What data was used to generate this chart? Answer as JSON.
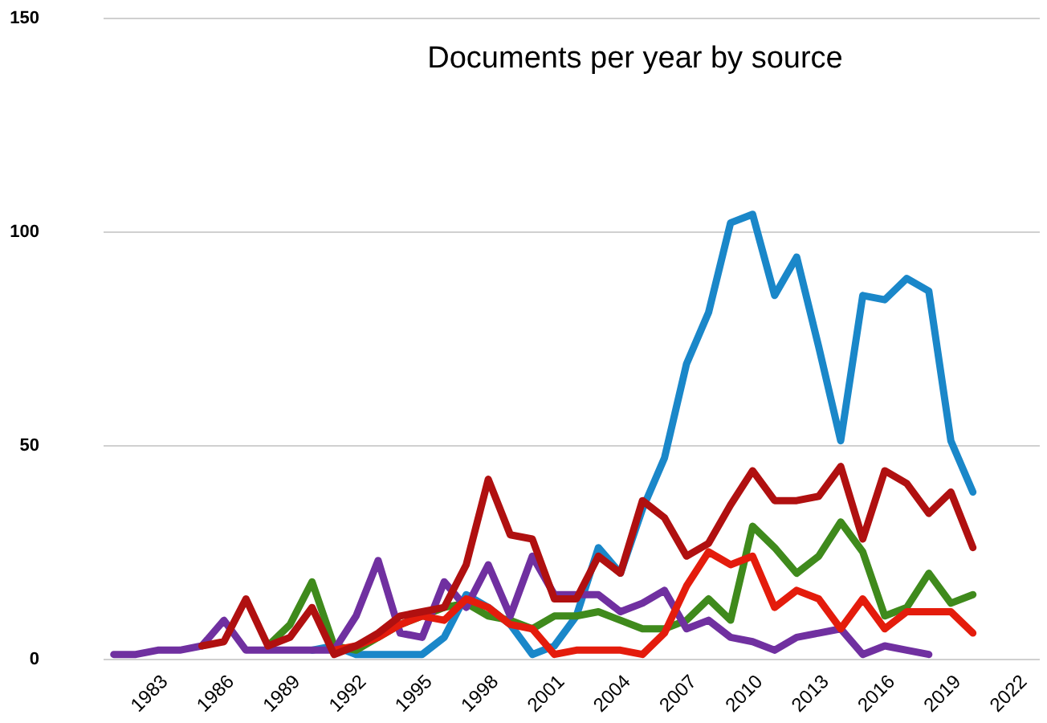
{
  "chart_data": {
    "type": "line",
    "title": "Documents per year by source",
    "x": [
      1981,
      1982,
      1983,
      1984,
      1985,
      1986,
      1987,
      1988,
      1989,
      1990,
      1991,
      1992,
      1993,
      1994,
      1995,
      1996,
      1997,
      1998,
      1999,
      2000,
      2001,
      2002,
      2003,
      2004,
      2005,
      2006,
      2007,
      2008,
      2009,
      2010,
      2011,
      2012,
      2013,
      2014,
      2015,
      2016,
      2017,
      2018,
      2019,
      2020
    ],
    "series": [
      {
        "color": "#1a87c9",
        "values": [
          null,
          null,
          null,
          null,
          null,
          null,
          null,
          null,
          null,
          2,
          3,
          1,
          1,
          1,
          1,
          5,
          15,
          12,
          8,
          1,
          3,
          10,
          26,
          20,
          35,
          47,
          69,
          81,
          102,
          104,
          85,
          94,
          73,
          51,
          85,
          84,
          89,
          86,
          51,
          39
        ]
      },
      {
        "color": "#3f8a1c",
        "values": [
          null,
          null,
          null,
          null,
          null,
          null,
          null,
          3,
          8,
          18,
          3,
          2,
          5,
          8,
          10,
          12,
          13,
          10,
          9,
          7,
          10,
          10,
          11,
          9,
          7,
          7,
          9,
          14,
          9,
          31,
          26,
          20,
          24,
          32,
          25,
          10,
          12,
          20,
          13,
          15
        ]
      },
      {
        "color": "#7030a0",
        "values": [
          1,
          1,
          2,
          2,
          3,
          9,
          2,
          2,
          2,
          2,
          2,
          10,
          23,
          6,
          5,
          18,
          12,
          22,
          10,
          24,
          15,
          15,
          15,
          11,
          13,
          16,
          7,
          9,
          5,
          4,
          2,
          5,
          6,
          7,
          1,
          3,
          2,
          1,
          null,
          null
        ]
      },
      {
        "color": "#e41c0c",
        "values": [
          null,
          null,
          null,
          null,
          null,
          null,
          null,
          null,
          null,
          null,
          2,
          3,
          5,
          8,
          10,
          9,
          14,
          12,
          8,
          7,
          1,
          2,
          2,
          2,
          1,
          6,
          17,
          25,
          22,
          24,
          12,
          16,
          14,
          7,
          14,
          7,
          11,
          11,
          11,
          6
        ]
      },
      {
        "color": "#b01010",
        "values": [
          null,
          null,
          null,
          null,
          3,
          4,
          14,
          3,
          5,
          12,
          1,
          3,
          6,
          10,
          11,
          12,
          22,
          42,
          29,
          28,
          14,
          14,
          24,
          20,
          37,
          33,
          24,
          27,
          36,
          44,
          37,
          37,
          38,
          45,
          28,
          44,
          41,
          34,
          39,
          26
        ]
      }
    ],
    "xlim": [
      1980.5,
      2023
    ],
    "xticks": [
      1983,
      1986,
      1989,
      1992,
      1995,
      1998,
      2001,
      2004,
      2007,
      2010,
      2013,
      2016,
      2019,
      2022
    ],
    "ylim": [
      0,
      150
    ],
    "yticks": [
      0,
      50,
      100,
      150
    ],
    "grid": "y",
    "line_style": "solid"
  }
}
